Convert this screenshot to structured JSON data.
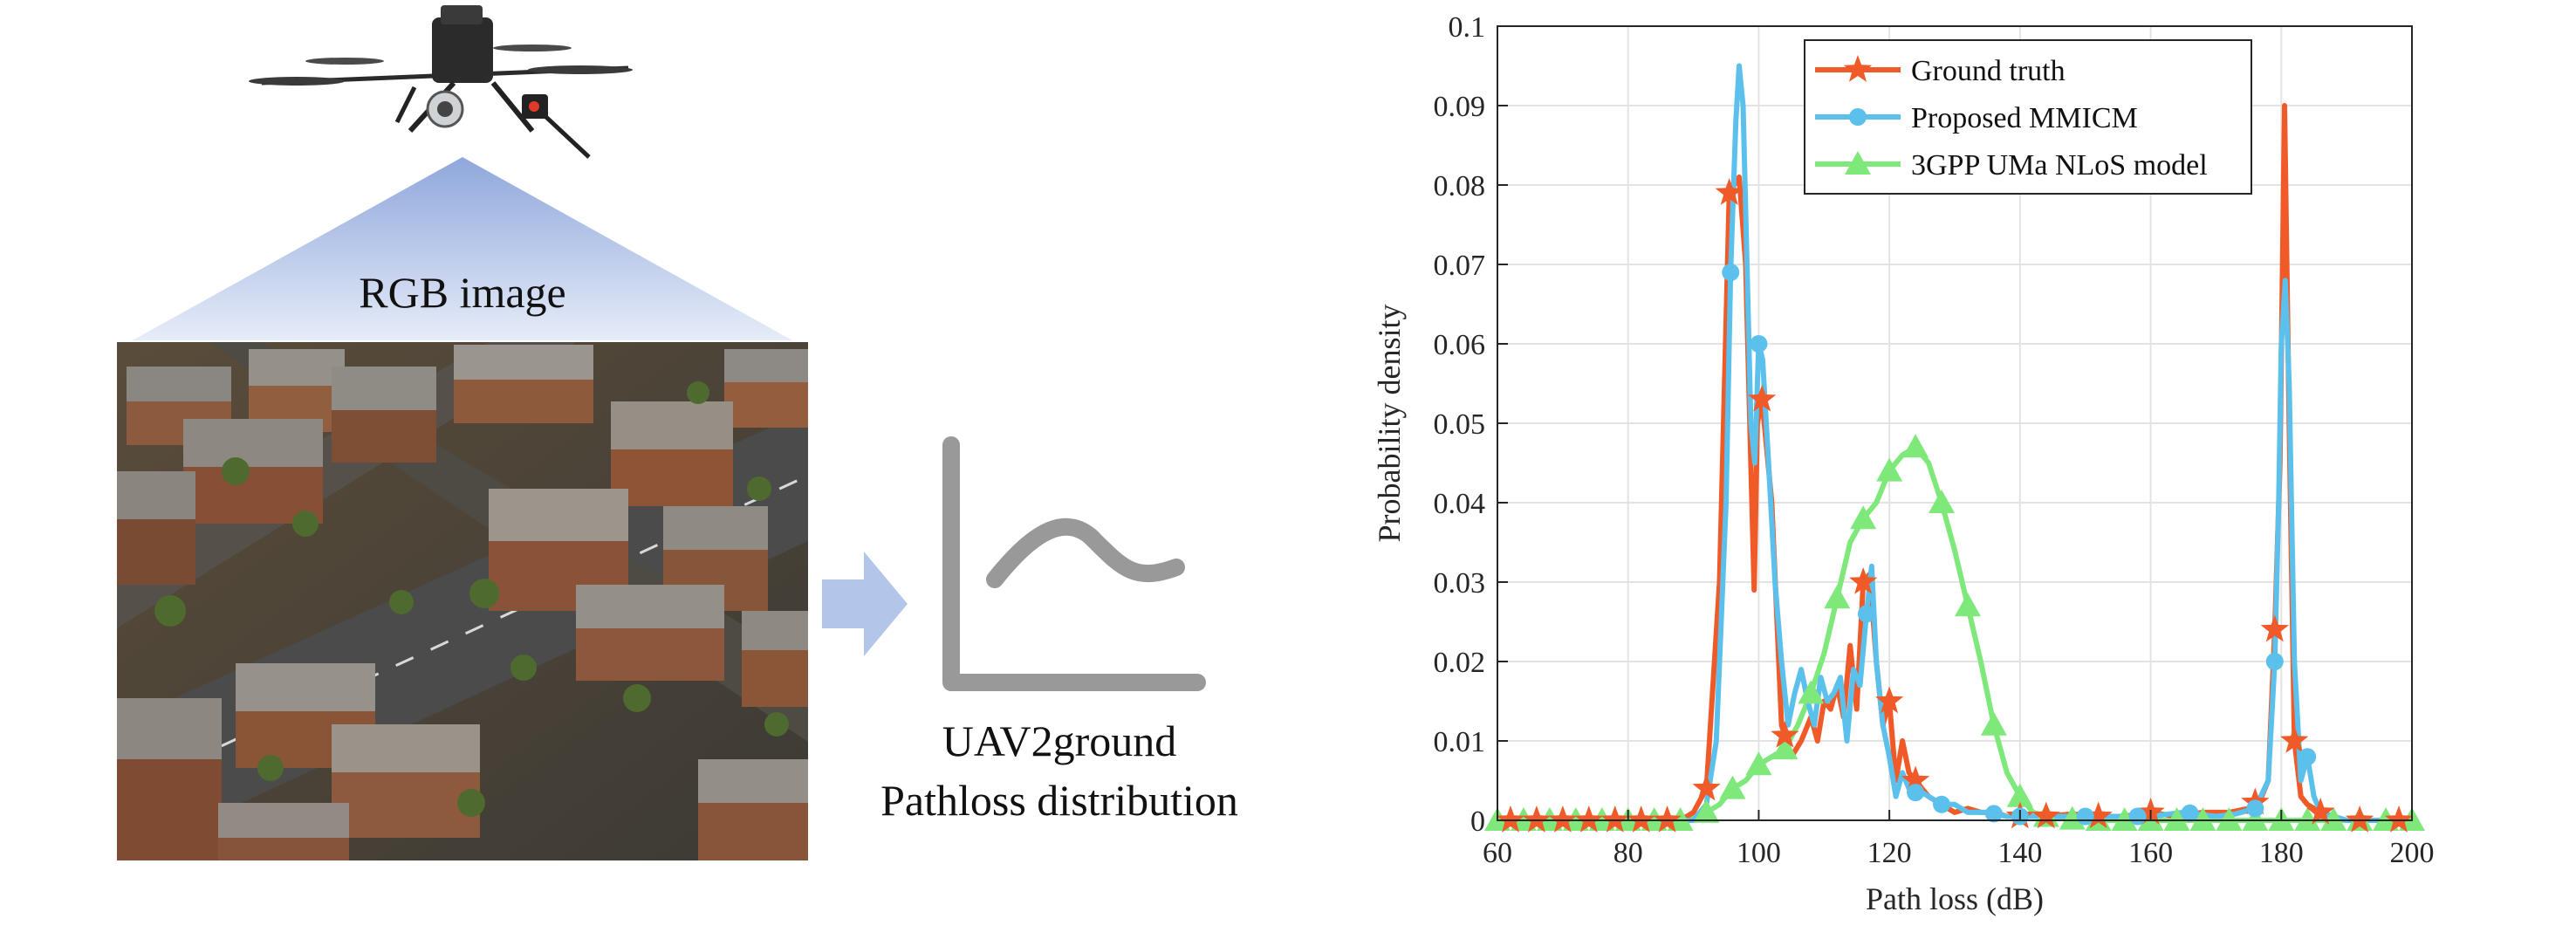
{
  "diagram": {
    "rgb_label": "RGB image",
    "output_label_line1": "UAV2ground",
    "output_label_line2": "Pathloss distribution",
    "icons": [
      "drone-icon",
      "aerial-city-image",
      "arrow-right-icon",
      "distribution-curve-icon"
    ]
  },
  "chart_data": {
    "type": "line",
    "title": "",
    "xlabel": "Path loss (dB)",
    "ylabel": "Probability density",
    "xlim": [
      60,
      200
    ],
    "ylim": [
      0,
      0.1
    ],
    "xticks": [
      60,
      80,
      100,
      120,
      140,
      160,
      180,
      200
    ],
    "yticks": [
      0,
      0.01,
      0.02,
      0.03,
      0.04,
      0.05,
      0.06,
      0.07,
      0.08,
      0.09,
      0.1
    ],
    "ytick_labels": [
      "0",
      "0.01",
      "0.02",
      "0.03",
      "0.04",
      "0.05",
      "0.06",
      "0.07",
      "0.08",
      "0.09",
      "0.1"
    ],
    "grid": true,
    "legend_position": "top-right",
    "series": [
      {
        "name": "Ground truth",
        "color": "#f05a28",
        "marker": "star",
        "points": [
          [
            60,
            0
          ],
          [
            64,
            0
          ],
          [
            68,
            0
          ],
          [
            72,
            0
          ],
          [
            76,
            0
          ],
          [
            80,
            0
          ],
          [
            84,
            0
          ],
          [
            88,
            0
          ],
          [
            90,
            0.001
          ],
          [
            92,
            0.004
          ],
          [
            94,
            0.03
          ],
          [
            95.5,
            0.079
          ],
          [
            97,
            0.081
          ],
          [
            98,
            0.07
          ],
          [
            98.8,
            0.045
          ],
          [
            99.3,
            0.029
          ],
          [
            99.8,
            0.05
          ],
          [
            100.5,
            0.053
          ],
          [
            102,
            0.04
          ],
          [
            103.5,
            0.012
          ],
          [
            105,
            0.008
          ],
          [
            106.5,
            0.01
          ],
          [
            108,
            0.013
          ],
          [
            109,
            0.01
          ],
          [
            110,
            0.015
          ],
          [
            111,
            0.014
          ],
          [
            112,
            0.017
          ],
          [
            113,
            0.013
          ],
          [
            114,
            0.022
          ],
          [
            115,
            0.014
          ],
          [
            116,
            0.03
          ],
          [
            117,
            0.031
          ],
          [
            118,
            0.02
          ],
          [
            119,
            0.012
          ],
          [
            120,
            0.015
          ],
          [
            121,
            0.005
          ],
          [
            122,
            0.01
          ],
          [
            123,
            0.006
          ],
          [
            124,
            0.005
          ],
          [
            125,
            0.004
          ],
          [
            126,
            0.003
          ],
          [
            128,
            0.002
          ],
          [
            130,
            0.001
          ],
          [
            132,
            0.0015
          ],
          [
            134,
            0.001
          ],
          [
            136,
            0.001
          ],
          [
            138,
            0.0005
          ],
          [
            140,
            0.0005
          ],
          [
            144,
            0.0005
          ],
          [
            148,
            0.0008
          ],
          [
            152,
            0.0005
          ],
          [
            156,
            0.0005
          ],
          [
            160,
            0.001
          ],
          [
            164,
            0.0005
          ],
          [
            168,
            0.001
          ],
          [
            172,
            0.001
          ],
          [
            175,
            0.0015
          ],
          [
            177,
            0.003
          ],
          [
            178,
            0.005
          ],
          [
            179,
            0.024
          ],
          [
            179.8,
            0.045
          ],
          [
            180.5,
            0.09
          ],
          [
            181.2,
            0.05
          ],
          [
            182,
            0.01
          ],
          [
            183,
            0.003
          ],
          [
            184,
            0.002
          ],
          [
            186,
            0.001
          ],
          [
            188,
            0.0005
          ],
          [
            190,
            0
          ],
          [
            194,
            0
          ],
          [
            198,
            0
          ],
          [
            200,
            0
          ]
        ],
        "marker_x": [
          62,
          66,
          70,
          74,
          78,
          82,
          86,
          92,
          95.5,
          100.5,
          104,
          116,
          120,
          124,
          140,
          144,
          152,
          160,
          176,
          179,
          182,
          186,
          192,
          198
        ]
      },
      {
        "name": "Proposed MMICM",
        "color": "#5bc0eb",
        "marker": "circle",
        "points": [
          [
            60,
            0
          ],
          [
            64,
            0
          ],
          [
            68,
            0
          ],
          [
            72,
            0
          ],
          [
            76,
            0
          ],
          [
            80,
            0
          ],
          [
            84,
            0
          ],
          [
            88,
            0
          ],
          [
            90,
            0
          ],
          [
            92,
            0.002
          ],
          [
            93.5,
            0.01
          ],
          [
            95,
            0.04
          ],
          [
            95.7,
            0.069
          ],
          [
            96.5,
            0.088
          ],
          [
            97,
            0.095
          ],
          [
            97.6,
            0.09
          ],
          [
            98.2,
            0.07
          ],
          [
            98.8,
            0.05
          ],
          [
            99.4,
            0.045
          ],
          [
            100,
            0.06
          ],
          [
            100.6,
            0.058
          ],
          [
            101.5,
            0.045
          ],
          [
            102.5,
            0.03
          ],
          [
            103.5,
            0.02
          ],
          [
            104.5,
            0.012
          ],
          [
            105.5,
            0.016
          ],
          [
            106.5,
            0.019
          ],
          [
            107.5,
            0.015
          ],
          [
            108.5,
            0.012
          ],
          [
            109.5,
            0.018
          ],
          [
            110.5,
            0.015
          ],
          [
            111.5,
            0.016
          ],
          [
            112.5,
            0.018
          ],
          [
            113.5,
            0.01
          ],
          [
            114.5,
            0.019
          ],
          [
            115.5,
            0.017
          ],
          [
            116.5,
            0.026
          ],
          [
            117.3,
            0.032
          ],
          [
            118,
            0.02
          ],
          [
            119,
            0.012
          ],
          [
            120,
            0.008
          ],
          [
            121,
            0.003
          ],
          [
            122,
            0.006
          ],
          [
            123,
            0.004
          ],
          [
            124,
            0.0035
          ],
          [
            125,
            0.0035
          ],
          [
            126,
            0.003
          ],
          [
            128,
            0.002
          ],
          [
            130,
            0.002
          ],
          [
            132,
            0.001
          ],
          [
            135,
            0.001
          ],
          [
            138,
            0.0005
          ],
          [
            140,
            0.0005
          ],
          [
            145,
            0.0005
          ],
          [
            150,
            0.0005
          ],
          [
            155,
            0.0005
          ],
          [
            160,
            0.0005
          ],
          [
            165,
            0.001
          ],
          [
            170,
            0.0005
          ],
          [
            173,
            0.0008
          ],
          [
            176,
            0.0015
          ],
          [
            178,
            0.005
          ],
          [
            179,
            0.02
          ],
          [
            179.6,
            0.04
          ],
          [
            180,
            0.06
          ],
          [
            180.6,
            0.068
          ],
          [
            181.2,
            0.055
          ],
          [
            182,
            0.02
          ],
          [
            183,
            0.005
          ],
          [
            184,
            0.008
          ],
          [
            185,
            0.003
          ],
          [
            186,
            0.001
          ],
          [
            188,
            0.0005
          ],
          [
            190,
            0
          ],
          [
            194,
            0
          ],
          [
            198,
            0
          ],
          [
            200,
            0
          ]
        ],
        "marker_x": [
          95.7,
          100,
          116.5,
          124,
          128,
          136,
          140,
          150,
          158,
          166,
          176,
          179,
          184
        ]
      },
      {
        "name": "3GPP UMa NLoS model",
        "color": "#7ee87a",
        "marker": "triangle",
        "points": [
          [
            60,
            0
          ],
          [
            64,
            0
          ],
          [
            68,
            0
          ],
          [
            72,
            0
          ],
          [
            76,
            0
          ],
          [
            80,
            0
          ],
          [
            84,
            0
          ],
          [
            88,
            0
          ],
          [
            90,
            0.0003
          ],
          [
            92,
            0.001
          ],
          [
            94,
            0.002
          ],
          [
            96,
            0.004
          ],
          [
            98,
            0.005
          ],
          [
            100,
            0.007
          ],
          [
            102,
            0.008
          ],
          [
            104,
            0.009
          ],
          [
            106,
            0.012
          ],
          [
            108,
            0.016
          ],
          [
            110,
            0.021
          ],
          [
            112,
            0.028
          ],
          [
            114,
            0.035
          ],
          [
            116,
            0.038
          ],
          [
            118,
            0.04
          ],
          [
            120,
            0.044
          ],
          [
            122,
            0.046
          ],
          [
            124,
            0.047
          ],
          [
            126,
            0.045
          ],
          [
            128,
            0.04
          ],
          [
            130,
            0.034
          ],
          [
            132,
            0.027
          ],
          [
            134,
            0.02
          ],
          [
            136,
            0.012
          ],
          [
            138,
            0.006
          ],
          [
            140,
            0.003
          ],
          [
            142,
            0.001
          ],
          [
            144,
            0.0005
          ],
          [
            146,
            0.0003
          ],
          [
            150,
            0
          ],
          [
            160,
            0
          ],
          [
            170,
            0
          ],
          [
            180,
            0
          ],
          [
            190,
            0
          ],
          [
            200,
            0
          ]
        ],
        "marker_x": [
          60,
          64,
          68,
          72,
          76,
          80,
          84,
          88,
          92,
          96,
          100,
          104,
          108,
          112,
          116,
          120,
          124,
          128,
          132,
          136,
          140,
          144,
          148,
          152,
          156,
          160,
          164,
          168,
          172,
          176,
          180,
          184,
          188,
          192,
          196,
          200
        ]
      }
    ]
  }
}
